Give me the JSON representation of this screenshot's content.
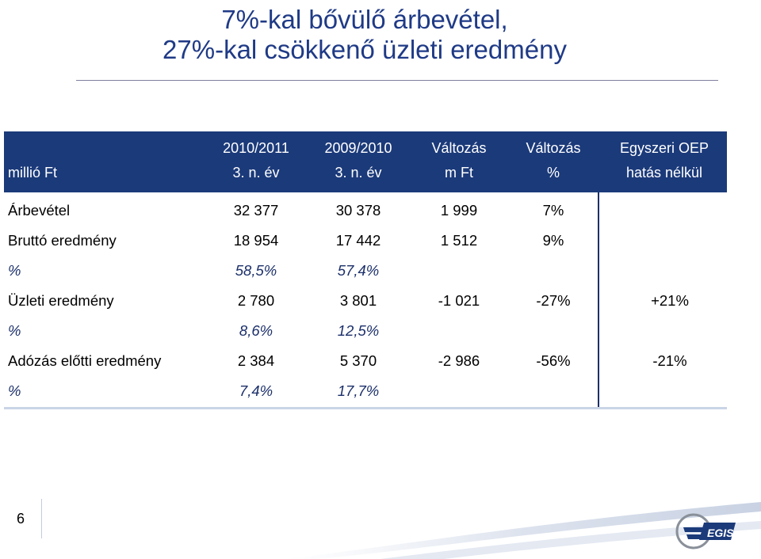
{
  "title": {
    "line1": "7%-kal bővülő árbevétel,",
    "line2": "27%-kal csökkenő üzleti eredmény"
  },
  "table": {
    "row_label_header": "millió Ft",
    "columns": [
      {
        "line1": "2010/2011",
        "line2": "3. n. év"
      },
      {
        "line1": "2009/2010",
        "line2": "3. n. év"
      },
      {
        "line1": "Változás",
        "line2": "m Ft"
      },
      {
        "line1": "Változás",
        "line2": "%"
      },
      {
        "line1": "Egyszeri OEP",
        "line2": "hatás nélkül"
      }
    ],
    "rows": [
      {
        "label": "Árbevétel",
        "values": [
          "32 377",
          "30 378",
          "1 999",
          "7%",
          ""
        ],
        "pct": false
      },
      {
        "label": "Bruttó eredmény",
        "values": [
          "18 954",
          "17 442",
          "1 512",
          "9%",
          ""
        ],
        "pct": false
      },
      {
        "label": "%",
        "values": [
          "58,5%",
          "57,4%",
          "",
          "",
          ""
        ],
        "pct": true
      },
      {
        "label": "Üzleti eredmény",
        "values": [
          "2 780",
          "3 801",
          "-1 021",
          "-27%",
          "+21%"
        ],
        "pct": false
      },
      {
        "label": "%",
        "values": [
          "8,6%",
          "12,5%",
          "",
          "",
          ""
        ],
        "pct": true
      },
      {
        "label": "Adózás előtti eredmény",
        "values": [
          "2 384",
          "5 370",
          "-2 986",
          "-56%",
          "-21%"
        ],
        "pct": false
      },
      {
        "label": "%",
        "values": [
          "7,4%",
          "17,7%",
          "",
          "",
          ""
        ],
        "pct": true
      }
    ]
  },
  "footer": {
    "page_number": "6",
    "logo_icon": "egis-logo-icon"
  },
  "colors": {
    "title": "#1f3a86",
    "header_bg": "#1b3a7a",
    "pct_text": "#1b2f6a"
  }
}
